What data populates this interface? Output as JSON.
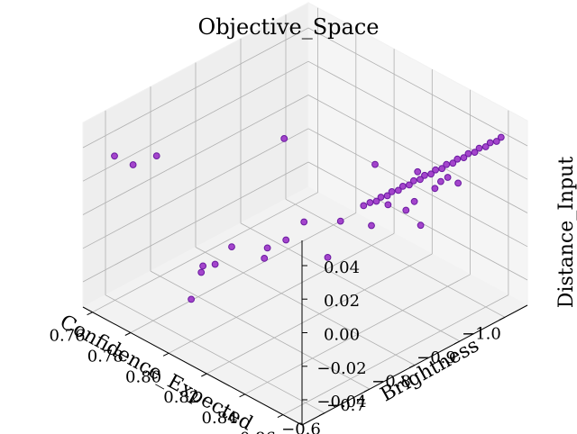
{
  "chart_data": {
    "type": "scatter",
    "title": "Objective_Space",
    "xlabel": "Confidence_Expected",
    "ylabel": "Brightness",
    "zlabel": "Distance_Input",
    "xlim": [
      -1.05,
      -0.55
    ],
    "ylim": [
      0.755,
      0.87
    ],
    "zlim": [
      -0.055,
      0.055
    ],
    "xticks": [
      "−1.0",
      "−0.9",
      "−0.8",
      "−0.7",
      "−0.6"
    ],
    "xtick_values": [
      -1.0,
      -0.9,
      -0.8,
      -0.7,
      -0.6
    ],
    "yticks": [
      "0.76",
      "0.78",
      "0.80",
      "0.82",
      "0.84",
      "0.86"
    ],
    "ytick_values": [
      0.76,
      0.78,
      0.8,
      0.82,
      0.84,
      0.86
    ],
    "zticks": [
      "−0.04",
      "−0.02",
      "0.00",
      "0.02",
      "0.04"
    ],
    "ztick_values": [
      -0.04,
      -0.02,
      0.0,
      0.02,
      0.04
    ],
    "grid": true,
    "marker_color": "#9b32c8",
    "marker_edge": "#6a1aa0",
    "points": [
      {
        "x": -1.0,
        "y": 0.868,
        "z": 0.051
      },
      {
        "x": -0.99,
        "y": 0.868,
        "z": 0.05
      },
      {
        "x": -0.98,
        "y": 0.867,
        "z": 0.05
      },
      {
        "x": -0.97,
        "y": 0.867,
        "z": 0.049
      },
      {
        "x": -0.96,
        "y": 0.866,
        "z": 0.049
      },
      {
        "x": -0.95,
        "y": 0.866,
        "z": 0.048
      },
      {
        "x": -0.94,
        "y": 0.865,
        "z": 0.048
      },
      {
        "x": -0.93,
        "y": 0.865,
        "z": 0.047
      },
      {
        "x": -0.92,
        "y": 0.864,
        "z": 0.047
      },
      {
        "x": -0.91,
        "y": 0.864,
        "z": 0.046
      },
      {
        "x": -0.9,
        "y": 0.863,
        "z": 0.046
      },
      {
        "x": -0.89,
        "y": 0.863,
        "z": 0.045
      },
      {
        "x": -0.88,
        "y": 0.862,
        "z": 0.045
      },
      {
        "x": -0.87,
        "y": 0.862,
        "z": 0.044
      },
      {
        "x": -0.86,
        "y": 0.861,
        "z": 0.044
      },
      {
        "x": -0.85,
        "y": 0.861,
        "z": 0.043
      },
      {
        "x": -0.84,
        "y": 0.86,
        "z": 0.043
      },
      {
        "x": -0.83,
        "y": 0.86,
        "z": 0.042
      },
      {
        "x": -0.82,
        "y": 0.859,
        "z": 0.042
      },
      {
        "x": -0.81,
        "y": 0.859,
        "z": 0.041
      },
      {
        "x": -0.8,
        "y": 0.858,
        "z": 0.041
      },
      {
        "x": -0.79,
        "y": 0.858,
        "z": 0.04
      },
      {
        "x": -0.78,
        "y": 0.857,
        "z": 0.04
      },
      {
        "x": -0.77,
        "y": 0.857,
        "z": 0.039
      },
      {
        "x": -0.76,
        "y": 0.856,
        "z": 0.039
      },
      {
        "x": -0.75,
        "y": 0.855,
        "z": 0.038
      },
      {
        "x": -0.93,
        "y": 0.862,
        "z": 0.03
      },
      {
        "x": -0.9,
        "y": 0.86,
        "z": 0.034
      },
      {
        "x": -0.85,
        "y": 0.858,
        "z": 0.028
      },
      {
        "x": -0.8,
        "y": 0.856,
        "z": 0.032
      },
      {
        "x": -0.78,
        "y": 0.852,
        "z": 0.02
      },
      {
        "x": -0.72,
        "y": 0.85,
        "z": 0.03
      },
      {
        "x": -0.7,
        "y": 0.848,
        "z": 0.01
      },
      {
        "x": -1.0,
        "y": 0.84,
        "z": 0.01
      },
      {
        "x": -0.98,
        "y": 0.838,
        "z": 0.005
      },
      {
        "x": -0.95,
        "y": 0.836,
        "z": 0.018
      },
      {
        "x": -0.94,
        "y": 0.84,
        "z": -0.01
      },
      {
        "x": -0.92,
        "y": 0.837,
        "z": 0.0
      },
      {
        "x": -0.62,
        "y": 0.845,
        "z": 0.03
      },
      {
        "x": -0.6,
        "y": 0.84,
        "z": 0.025
      },
      {
        "x": -0.61,
        "y": 0.836,
        "z": 0.015
      },
      {
        "x": -0.58,
        "y": 0.826,
        "z": 0.02
      },
      {
        "x": -0.56,
        "y": 0.822,
        "z": 0.01
      },
      {
        "x": -0.55,
        "y": 0.818,
        "z": 0.008
      },
      {
        "x": -0.58,
        "y": 0.81,
        "z": -0.005
      },
      {
        "x": -0.6,
        "y": 0.8,
        "z": -0.03
      },
      {
        "x": -0.66,
        "y": 0.845,
        "z": 0.035
      },
      {
        "x": -1.05,
        "y": 0.79,
        "z": -0.02
      },
      {
        "x": -0.95,
        "y": 0.766,
        "z": -0.005
      },
      {
        "x": -0.65,
        "y": 0.77,
        "z": 0.03
      },
      {
        "x": -0.64,
        "y": 0.76,
        "z": 0.02
      },
      {
        "x": -0.62,
        "y": 0.755,
        "z": 0.025
      }
    ]
  }
}
